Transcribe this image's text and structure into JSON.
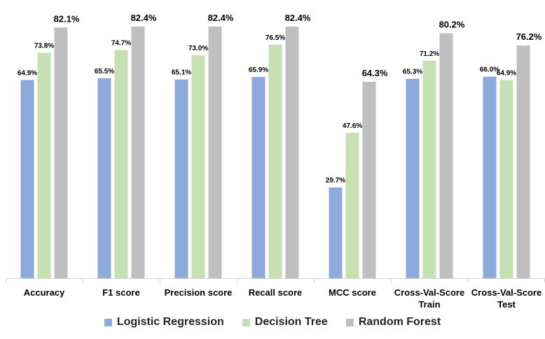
{
  "chart_data": {
    "type": "bar",
    "categories": [
      [
        "Accuracy"
      ],
      [
        "F1 score"
      ],
      [
        "Precision score"
      ],
      [
        "Recall score"
      ],
      [
        "MCC score"
      ],
      [
        "Cross-Val-Score",
        "Train"
      ],
      [
        "Cross-Val-Score",
        "Test"
      ]
    ],
    "series": [
      {
        "name": "Logistic Regression",
        "color": "#8EA9DB",
        "values": [
          64.9,
          65.5,
          65.1,
          65.9,
          29.7,
          65.3,
          66.0
        ],
        "labels": [
          "64.9%",
          "65.5%",
          "65.1%",
          "65.9%",
          "29.7%",
          "65.3%",
          "66.0%"
        ]
      },
      {
        "name": "Decision Tree",
        "color": "#C6E0B4",
        "values": [
          73.8,
          74.7,
          73.0,
          76.5,
          47.6,
          71.2,
          64.9
        ],
        "labels": [
          "73.8%",
          "74.7%",
          "73.0%",
          "76.5%",
          "47.6%",
          "71.2%",
          "64.9%"
        ]
      },
      {
        "name": "Random Forest",
        "color": "#BFBFBF",
        "values": [
          82.1,
          82.4,
          82.4,
          82.4,
          64.3,
          80.2,
          76.2
        ],
        "labels": [
          "82.1%",
          "82.4%",
          "82.4%",
          "82.4%",
          "64.3%",
          "80.2%",
          "76.2%"
        ]
      }
    ],
    "ylim": [
      0,
      100
    ],
    "grid": false,
    "legend_position": "bottom"
  }
}
